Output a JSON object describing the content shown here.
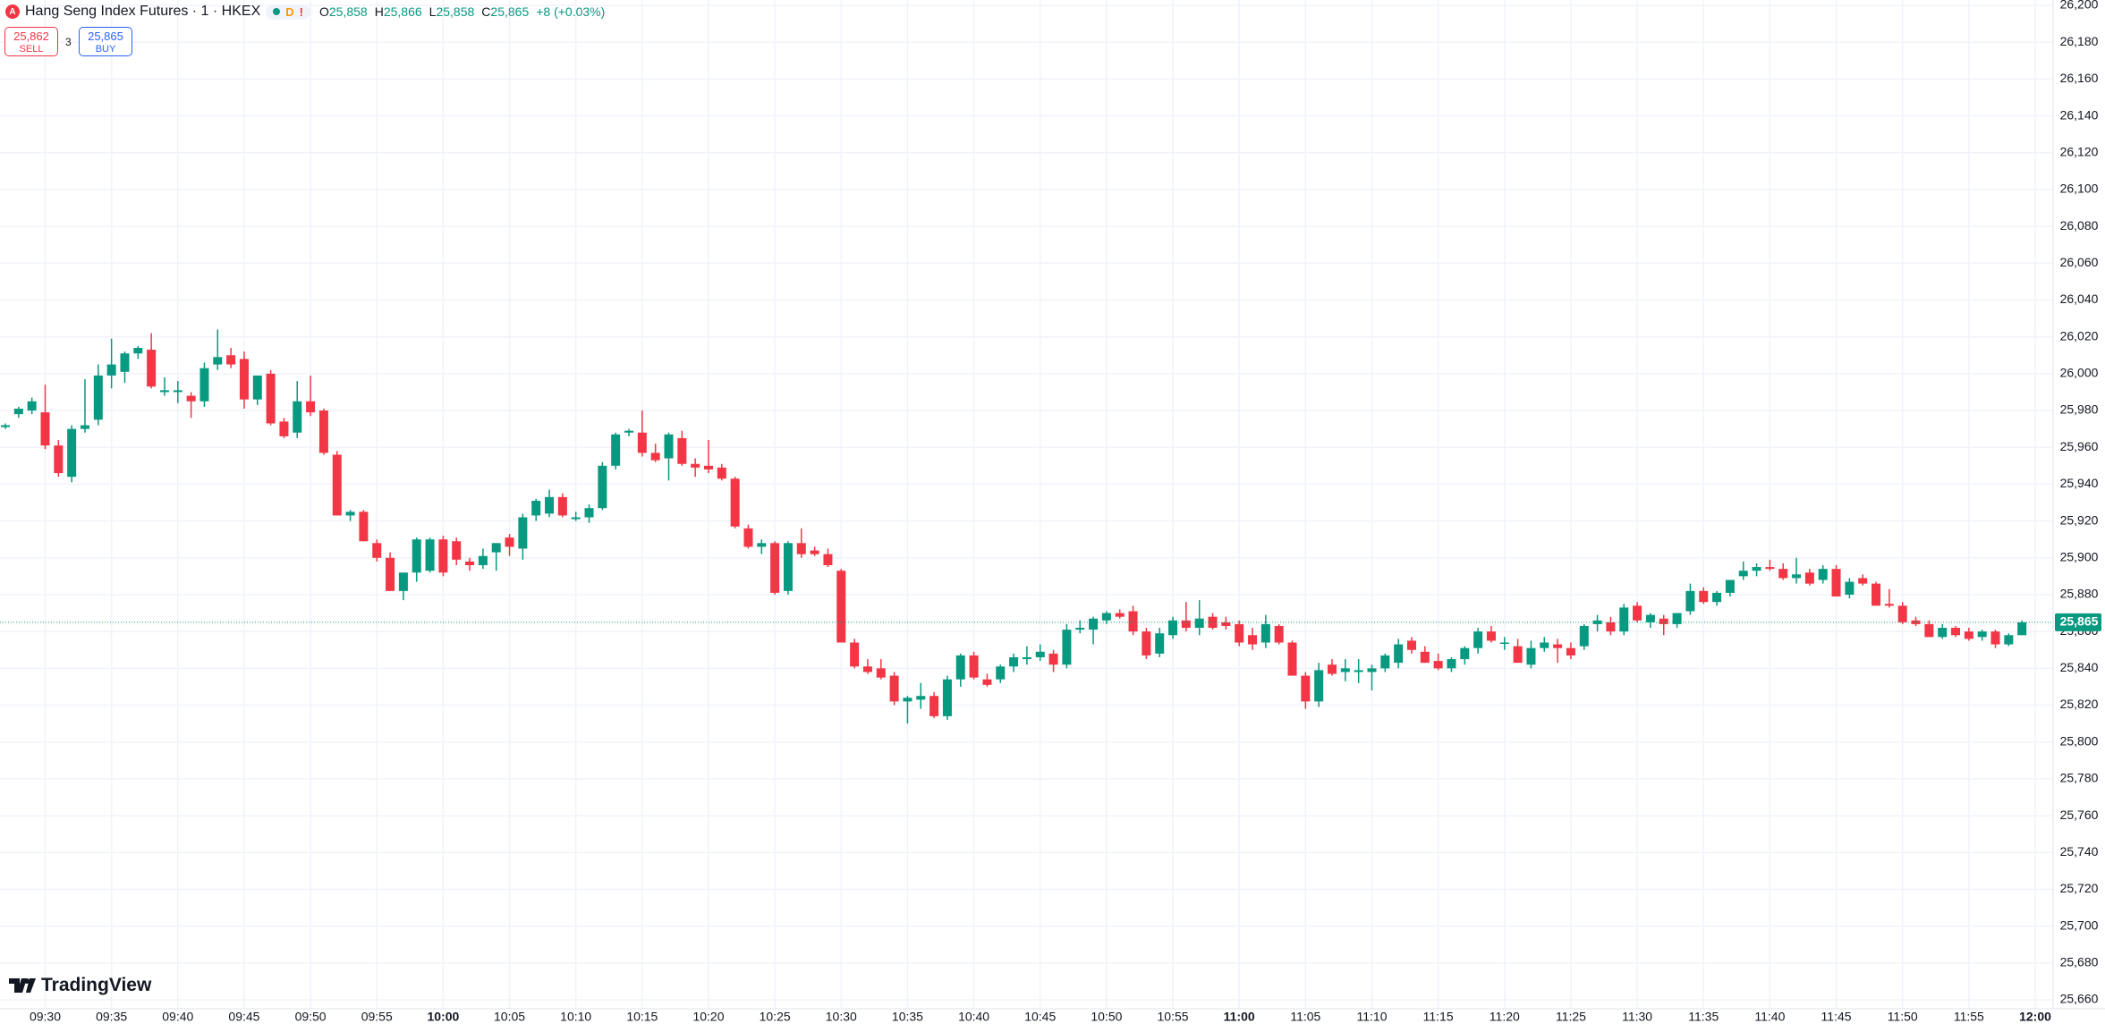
{
  "header": {
    "title": "Hang Seng Index Futures · 1 · HKEX",
    "badge": "D",
    "ohlc": [
      {
        "key": "O",
        "value": "25,858"
      },
      {
        "key": "H",
        "value": "25,866"
      },
      {
        "key": "L",
        "value": "25,858"
      },
      {
        "key": "C",
        "value": "25,865"
      }
    ],
    "change": "+8 (+0.03%)"
  },
  "trade": {
    "sell": {
      "price": "25,862",
      "label": "SELL"
    },
    "spread": "3",
    "buy": {
      "price": "25,865",
      "label": "BUY"
    }
  },
  "branding": "TradingView",
  "chart_data": {
    "type": "candlestick",
    "up_color": "#089981",
    "down_color": "#f23645",
    "grid": true,
    "categories": [
      null,
      null,
      null,
      "09:30",
      null,
      null,
      null,
      null,
      "09:35",
      null,
      null,
      null,
      null,
      "09:40",
      null,
      null,
      null,
      null,
      "09:45",
      null,
      null,
      null,
      null,
      "09:50",
      null,
      null,
      null,
      null,
      "09:55",
      null,
      null,
      null,
      null,
      "10:00",
      null,
      null,
      null,
      null,
      "10:05",
      null,
      null,
      null,
      null,
      "10:10",
      null,
      null,
      null,
      null,
      "10:15",
      null,
      null,
      null,
      null,
      "10:20",
      null,
      null,
      null,
      null,
      "10:25",
      null,
      null,
      null,
      null,
      "10:30",
      null,
      null,
      null,
      null,
      "10:35",
      null,
      null,
      null,
      null,
      "10:40",
      null,
      null,
      null,
      null,
      "10:45",
      null,
      null,
      null,
      null,
      "10:50",
      null,
      null,
      null,
      null,
      "10:55",
      null,
      null,
      null,
      null,
      "11:00",
      null,
      null,
      null,
      null,
      "11:05",
      null,
      null,
      null,
      null,
      "11:10",
      null,
      null,
      null,
      null,
      "11:15",
      null,
      null,
      null,
      null,
      "11:20",
      null,
      null,
      null,
      null,
      "11:25",
      null,
      null,
      null,
      null,
      "11:30",
      null,
      null,
      null,
      null,
      "11:35",
      null,
      null,
      null,
      null,
      "11:40",
      null,
      null,
      null,
      null,
      "11:45",
      null,
      null,
      null,
      null,
      "11:50",
      null,
      null,
      null,
      null,
      "11:55",
      null,
      null,
      null,
      null,
      "12:00"
    ],
    "open": [
      25971,
      25978,
      25980,
      25979,
      25961,
      25944,
      25970,
      25975,
      25999,
      26001,
      26011,
      26013,
      25990,
      25990,
      25988,
      25985,
      26005,
      26010,
      26008,
      25986,
      26000,
      25974,
      25968,
      25985,
      25980,
      25956,
      25923,
      25925,
      25908,
      25900,
      25882,
      25892,
      25893,
      25910,
      25909,
      25898,
      25896,
      25903,
      25911,
      25905,
      25923,
      25924,
      25933,
      25921,
      25922,
      25927,
      25950,
      25968,
      25968,
      25957,
      25954,
      25965,
      25951,
      25950,
      25949,
      25943,
      25916,
      25906,
      25908,
      25882,
      25908,
      25904,
      25902,
      25893,
      25854,
      25841,
      25840,
      25836,
      25822,
      25823,
      25825,
      25814,
      25834,
      25847,
      25834,
      25834,
      25841,
      25845,
      25846,
      25848,
      25842,
      25861,
      25861,
      25866,
      25870,
      25871,
      25860,
      25848,
      25858,
      25866,
      25862,
      25868,
      25865,
      25864,
      25858,
      25854,
      25863,
      25854,
      25836,
      25822,
      25842,
      25838,
      25838,
      25838,
      25840,
      25843,
      25855,
      25849,
      25844,
      25840,
      25845,
      25851,
      25860,
      25854,
      25852,
      25842,
      25851,
      25853,
      25851,
      25852,
      25864,
      25865,
      25860,
      25874,
      25865,
      25867,
      25864,
      25871,
      25882,
      25876,
      25881,
      25890,
      25893,
      25895,
      25894,
      25889,
      25892,
      25888,
      25894,
      25880,
      25889,
      25886,
      25875,
      25874,
      25866,
      25864,
      25857,
      25862,
      25860,
      25857,
      25860,
      25853,
      25858,
      null
    ],
    "high": [
      25973,
      25982,
      25987,
      25994,
      25964,
      25972,
      25997,
      26005,
      26019,
      26012,
      26015,
      26022,
      25998,
      25996,
      25990,
      26006,
      26024,
      26014,
      26012,
      25995,
      26002,
      25976,
      25996,
      25999,
      25981,
      25958,
      25926,
      25926,
      25910,
      25903,
      25892,
      25911,
      25911,
      25912,
      25911,
      25900,
      25905,
      25908,
      25913,
      25924,
      25932,
      25937,
      25935,
      25925,
      25929,
      25952,
      25968,
      25970,
      25980,
      25962,
      25968,
      25969,
      25954,
      25964,
      25951,
      25944,
      25918,
      25910,
      25909,
      25909,
      25916,
      25906,
      25905,
      25894,
      25856,
      25845,
      25845,
      25838,
      25825,
      25832,
      25827,
      25836,
      25848,
      25849,
      25837,
      25842,
      25848,
      25852,
      25853,
      25850,
      25864,
      25866,
      25868,
      25871,
      25872,
      25874,
      25862,
      25862,
      25868,
      25876,
      25877,
      25870,
      25868,
      25866,
      25862,
      25869,
      25864,
      25855,
      25838,
      25843,
      25845,
      25845,
      25845,
      25842,
      25848,
      25856,
      25857,
      25852,
      25848,
      25846,
      25852,
      25862,
      25863,
      25857,
      25856,
      25855,
      25857,
      25856,
      25854,
      25864,
      25869,
      25868,
      25875,
      25876,
      25870,
      25869,
      25870,
      25886,
      25884,
      25882,
      25888,
      25898,
      25897,
      25899,
      25897,
      25900,
      25894,
      25896,
      25896,
      25889,
      25891,
      25887,
      25883,
      25876,
      25868,
      25866,
      25864,
      25863,
      25862,
      25861,
      25861,
      25859,
      25866,
      null
    ],
    "low": [
      25970,
      25976,
      25978,
      25959,
      25944,
      25941,
      25968,
      25972,
      25992,
      25995,
      26008,
      25992,
      25988,
      25984,
      25976,
      25982,
      26002,
      26003,
      25981,
      25983,
      25972,
      25965,
      25965,
      25977,
      25956,
      25923,
      25920,
      25909,
      25898,
      25882,
      25877,
      25887,
      25892,
      25890,
      25896,
      25893,
      25894,
      25893,
      25901,
      25899,
      25920,
      25922,
      25922,
      25920,
      25919,
      25926,
      25948,
      25966,
      25955,
      25952,
      25942,
      25950,
      25944,
      25946,
      25942,
      25916,
      25905,
      25902,
      25880,
      25880,
      25900,
      25901,
      25895,
      25854,
      25840,
      25837,
      25834,
      25820,
      25810,
      25818,
      25813,
      25812,
      25830,
      25834,
      25830,
      25832,
      25838,
      25842,
      25844,
      25838,
      25840,
      25859,
      25853,
      25864,
      25867,
      25858,
      25845,
      25846,
      25856,
      25860,
      25858,
      25861,
      25861,
      25852,
      25850,
      25851,
      25853,
      25836,
      25818,
      25819,
      25836,
      25833,
      25832,
      25828,
      25838,
      25840,
      25848,
      25843,
      25839,
      25838,
      25842,
      25848,
      25854,
      25850,
      25843,
      25840,
      25849,
      25843,
      25845,
      25850,
      25860,
      25858,
      25858,
      25865,
      25862,
      25858,
      25862,
      25869,
      25875,
      25874,
      25879,
      25888,
      25890,
      25893,
      25888,
      25886,
      25885,
      25886,
      25879,
      25878,
      25885,
      25874,
      25873,
      25864,
      25863,
      25857,
      25856,
      25857,
      25855,
      25855,
      25851,
      25852,
      25858,
      null
    ],
    "close": [
      25972,
      25981,
      25985,
      25961,
      25946,
      25970,
      25972,
      25999,
      26005,
      26011,
      26014,
      25993,
      25991,
      25991,
      25985,
      26003,
      26009,
      26005,
      25986,
      25999,
      25973,
      25966,
      25985,
      25979,
      25957,
      25923,
      25925,
      25909,
      25900,
      25882,
      25892,
      25910,
      25910,
      25892,
      25899,
      25896,
      25901,
      25908,
      25906,
      25922,
      25931,
      25933,
      25923,
      25922,
      25927,
      25950,
      25967,
      25969,
      25957,
      25953,
      25967,
      25951,
      25949,
      25948,
      25943,
      25917,
      25906,
      25908,
      25881,
      25908,
      25902,
      25902,
      25896,
      25854,
      25841,
      25838,
      25835,
      25822,
      25824,
      25825,
      25814,
      25834,
      25847,
      25835,
      25831,
      25841,
      25846,
      25846,
      25849,
      25842,
      25861,
      25862,
      25867,
      25870,
      25868,
      25860,
      25847,
      25859,
      25866,
      25862,
      25867,
      25862,
      25863,
      25854,
      25853,
      25864,
      25854,
      25836,
      25822,
      25839,
      25837,
      25840,
      25839,
      25840,
      25847,
      25853,
      25850,
      25843,
      25840,
      25845,
      25851,
      25860,
      25855,
      25854,
      25843,
      25851,
      25854,
      25851,
      25847,
      25863,
      25866,
      25860,
      25873,
      25866,
      25869,
      25864,
      25870,
      25882,
      25876,
      25881,
      25888,
      25893,
      25895,
      25894,
      25889,
      25891,
      25886,
      25894,
      25879,
      25887,
      25886,
      25874,
      25874,
      25865,
      25864,
      25857,
      25862,
      25858,
      25856,
      25860,
      25853,
      25858,
      25865,
      null
    ],
    "ylim": [
      25660,
      26200
    ],
    "yticks": [
      {
        "value": 25660,
        "label": "25,660"
      },
      {
        "value": 25680,
        "label": "25,680"
      },
      {
        "value": 25700,
        "label": "25,700"
      },
      {
        "value": 25720,
        "label": "25,720"
      },
      {
        "value": 25740,
        "label": "25,740"
      },
      {
        "value": 25760,
        "label": "25,760"
      },
      {
        "value": 25780,
        "label": "25,780"
      },
      {
        "value": 25800,
        "label": "25,800"
      },
      {
        "value": 25820,
        "label": "25,820"
      },
      {
        "value": 25840,
        "label": "25,840"
      },
      {
        "value": 25860,
        "label": "25,860"
      },
      {
        "value": 25880,
        "label": "25,880"
      },
      {
        "value": 25900,
        "label": "25,900"
      },
      {
        "value": 25920,
        "label": "25,920"
      },
      {
        "value": 25940,
        "label": "25,940"
      },
      {
        "value": 25960,
        "label": "25,960"
      },
      {
        "value": 25980,
        "label": "25,980"
      },
      {
        "value": 26000,
        "label": "26,000"
      },
      {
        "value": 26020,
        "label": "26,020"
      },
      {
        "value": 26040,
        "label": "26,040"
      },
      {
        "value": 26060,
        "label": "26,060"
      },
      {
        "value": 26080,
        "label": "26,080"
      },
      {
        "value": 26100,
        "label": "26,100"
      },
      {
        "value": 26120,
        "label": "26,120"
      },
      {
        "value": 26140,
        "label": "26,140"
      },
      {
        "value": 26160,
        "label": "26,160"
      },
      {
        "value": 26180,
        "label": "26,180"
      },
      {
        "value": 26200,
        "label": "26,200"
      }
    ],
    "last_price": {
      "value": 25865,
      "label": "25,865"
    }
  }
}
